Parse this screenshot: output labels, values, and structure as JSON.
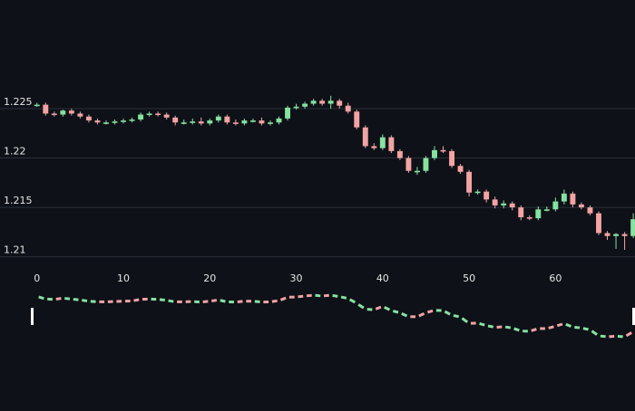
{
  "chart_data": [
    {
      "type": "candlestick",
      "title": "",
      "xlabel": "",
      "ylabel": "",
      "x": [
        0,
        1,
        2,
        3,
        4,
        5,
        6,
        7,
        8,
        9,
        10,
        11,
        12,
        13,
        14,
        15,
        16,
        17,
        18,
        19,
        20,
        21,
        22,
        23,
        24,
        25,
        26,
        27,
        28,
        29,
        30,
        31,
        32,
        33,
        34,
        35,
        36,
        37,
        38,
        39,
        40,
        41,
        42,
        43,
        44,
        45,
        46,
        47,
        48,
        49,
        50,
        51,
        52,
        53,
        54,
        55,
        56,
        57,
        58,
        59,
        60,
        61,
        62,
        63,
        64,
        65,
        66,
        67,
        68,
        69
      ],
      "open": [
        1.2254,
        1.2254,
        1.2245,
        1.2244,
        1.2248,
        1.2245,
        1.2242,
        1.2238,
        1.2236,
        1.2236,
        1.2237,
        1.2238,
        1.2239,
        1.2244,
        1.2245,
        1.2244,
        1.2241,
        1.2236,
        1.2236,
        1.2237,
        1.2235,
        1.2238,
        1.2242,
        1.2236,
        1.2235,
        1.2238,
        1.2238,
        1.2235,
        1.2236,
        1.224,
        1.2251,
        1.2252,
        1.2255,
        1.2258,
        1.2255,
        1.2258,
        1.2253,
        1.2247,
        1.2231,
        1.2212,
        1.221,
        1.2221,
        1.2207,
        1.22,
        1.2187,
        1.2187,
        1.22,
        1.2208,
        1.2207,
        1.2192,
        1.2186,
        1.2165,
        1.2166,
        1.2158,
        1.2152,
        1.2154,
        1.215,
        1.214,
        1.2139,
        1.2148,
        1.2148,
        1.2156,
        1.2164,
        1.2153,
        1.215,
        1.2144,
        1.2124,
        1.2121,
        1.2123,
        1.2121
      ],
      "close": [
        1.2254,
        1.2245,
        1.2244,
        1.2248,
        1.2245,
        1.2242,
        1.2238,
        1.2236,
        1.2236,
        1.2237,
        1.2238,
        1.2239,
        1.2244,
        1.2245,
        1.2244,
        1.2241,
        1.2236,
        1.2236,
        1.2237,
        1.2235,
        1.2238,
        1.2242,
        1.2236,
        1.2235,
        1.2238,
        1.2238,
        1.2235,
        1.2236,
        1.224,
        1.2251,
        1.2252,
        1.2255,
        1.2258,
        1.2255,
        1.2258,
        1.2253,
        1.2247,
        1.2231,
        1.2212,
        1.221,
        1.2221,
        1.2207,
        1.22,
        1.2187,
        1.2187,
        1.22,
        1.2208,
        1.2207,
        1.2192,
        1.2186,
        1.2165,
        1.2166,
        1.2158,
        1.2152,
        1.2154,
        1.215,
        1.214,
        1.2139,
        1.2148,
        1.2148,
        1.2156,
        1.2164,
        1.2153,
        1.215,
        1.2144,
        1.2124,
        1.2121,
        1.2123,
        1.2121,
        1.2138
      ],
      "high": [
        1.2256,
        1.2256,
        1.2247,
        1.2249,
        1.225,
        1.2247,
        1.2244,
        1.224,
        1.2238,
        1.2239,
        1.224,
        1.2241,
        1.2246,
        1.2247,
        1.2247,
        1.2246,
        1.2243,
        1.2239,
        1.224,
        1.2241,
        1.224,
        1.2244,
        1.2244,
        1.2239,
        1.224,
        1.224,
        1.2241,
        1.2238,
        1.2242,
        1.2253,
        1.2255,
        1.2257,
        1.226,
        1.226,
        1.2263,
        1.226,
        1.2256,
        1.2249,
        1.2233,
        1.2215,
        1.2224,
        1.2223,
        1.2209,
        1.2202,
        1.2191,
        1.2202,
        1.2212,
        1.2212,
        1.2209,
        1.2194,
        1.2188,
        1.2168,
        1.2168,
        1.2161,
        1.2157,
        1.2156,
        1.2152,
        1.2142,
        1.2151,
        1.2151,
        1.216,
        1.2168,
        1.2166,
        1.2155,
        1.2152,
        1.2146,
        1.2126,
        1.2124,
        1.2125,
        1.2144
      ],
      "low": [
        1.2252,
        1.2243,
        1.2242,
        1.2242,
        1.2243,
        1.224,
        1.2236,
        1.2234,
        1.2234,
        1.2234,
        1.2235,
        1.2236,
        1.2237,
        1.2242,
        1.2242,
        1.2239,
        1.2233,
        1.2234,
        1.2234,
        1.2233,
        1.2233,
        1.2236,
        1.2234,
        1.2233,
        1.2233,
        1.2236,
        1.2233,
        1.2233,
        1.2234,
        1.2238,
        1.2249,
        1.225,
        1.2253,
        1.2253,
        1.225,
        1.225,
        1.2245,
        1.2229,
        1.221,
        1.2208,
        1.2208,
        1.2205,
        1.2198,
        1.2185,
        1.2183,
        1.2185,
        1.2198,
        1.2205,
        1.219,
        1.2184,
        1.2161,
        1.2163,
        1.2155,
        1.2149,
        1.2149,
        1.2147,
        1.2137,
        1.2137,
        1.2137,
        1.2146,
        1.2146,
        1.2153,
        1.215,
        1.2148,
        1.2142,
        1.2122,
        1.2117,
        1.2108,
        1.2107,
        1.2119
      ],
      "yticks": [
        1.21,
        1.215,
        1.22,
        1.225
      ],
      "ytick_labels": [
        "1.21",
        "1.215",
        "1.22",
        "1.225"
      ],
      "xticks": [
        0,
        10,
        20,
        30,
        40,
        50,
        60
      ],
      "xtick_labels": [
        "0",
        "10",
        "20",
        "30",
        "40",
        "50",
        "60"
      ],
      "ylim": [
        1.2085,
        1.2305
      ],
      "xlim": [
        -0.5,
        69.2
      ],
      "grid": "horizontal",
      "legend": "none",
      "colors": {
        "up": "#86e2a0",
        "down": "#f2a3a3",
        "grid": "#2a2f3a",
        "text": "#e6e6e6",
        "background": "#0e1117"
      }
    },
    {
      "type": "line",
      "title": "",
      "xlabel": "",
      "ylabel": "",
      "style": "dashed-two-color",
      "x": [
        0,
        1,
        2,
        3,
        4,
        5,
        6,
        7,
        8,
        9,
        10,
        11,
        12,
        13,
        14,
        15,
        16,
        17,
        18,
        19,
        20,
        21,
        22,
        23,
        24,
        25,
        26,
        27,
        28,
        29,
        30,
        31,
        32,
        33,
        34,
        35,
        36,
        37,
        38,
        39,
        40,
        41,
        42,
        43,
        44,
        45,
        46,
        47,
        48,
        49,
        50,
        51,
        52,
        53,
        54,
        55,
        56,
        57,
        58,
        59,
        60,
        61,
        62,
        63,
        64,
        65,
        66,
        67,
        68,
        69
      ],
      "values": [
        1.2254,
        1.2245,
        1.2244,
        1.2248,
        1.2245,
        1.2242,
        1.2238,
        1.2236,
        1.2236,
        1.2237,
        1.2238,
        1.2239,
        1.2244,
        1.2245,
        1.2244,
        1.2241,
        1.2236,
        1.2236,
        1.2237,
        1.2235,
        1.2238,
        1.2242,
        1.2236,
        1.2235,
        1.2238,
        1.2238,
        1.2235,
        1.2236,
        1.224,
        1.2251,
        1.2252,
        1.2255,
        1.2258,
        1.2255,
        1.2258,
        1.2253,
        1.2247,
        1.2231,
        1.2212,
        1.221,
        1.2221,
        1.2207,
        1.22,
        1.2187,
        1.2187,
        1.22,
        1.2208,
        1.2207,
        1.2192,
        1.2186,
        1.2165,
        1.2166,
        1.2158,
        1.2152,
        1.2154,
        1.215,
        1.214,
        1.2139,
        1.2148,
        1.2148,
        1.2156,
        1.2164,
        1.2153,
        1.215,
        1.2144,
        1.2124,
        1.2121,
        1.2123,
        1.2121,
        1.2138
      ],
      "grid": "none",
      "legend": "none"
    }
  ]
}
